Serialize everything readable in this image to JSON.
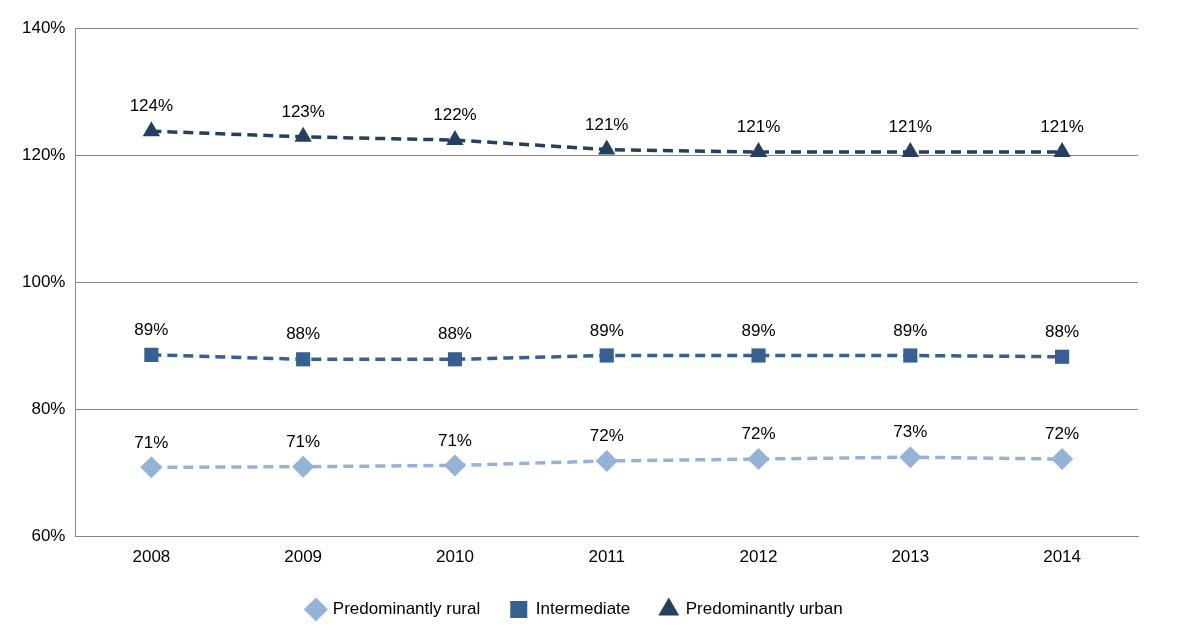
{
  "chart_data": {
    "type": "line",
    "categories": [
      "2008",
      "2009",
      "2010",
      "2011",
      "2012",
      "2013",
      "2014"
    ],
    "series": [
      {
        "name": "Predominantly rural",
        "color": "#95b3d7",
        "marker": "diamond",
        "values": [
          70.9,
          71.0,
          71.2,
          71.9,
          72.2,
          72.5,
          72.2
        ],
        "value_labels": [
          "71%",
          "71%",
          "71%",
          "72%",
          "72%",
          "73%",
          "72%"
        ]
      },
      {
        "name": "Intermediate",
        "color": "#366092",
        "marker": "square",
        "values": [
          88.6,
          87.9,
          87.9,
          88.5,
          88.5,
          88.5,
          88.3
        ],
        "value_labels": [
          "89%",
          "88%",
          "88%",
          "89%",
          "89%",
          "89%",
          "88%"
        ]
      },
      {
        "name": "Predominantly urban",
        "color": "#243f60",
        "marker": "triangle",
        "values": [
          123.8,
          122.9,
          122.4,
          120.9,
          120.5,
          120.5,
          120.5
        ],
        "value_labels": [
          "124%",
          "123%",
          "122%",
          "121%",
          "121%",
          "121%",
          "121%"
        ]
      }
    ],
    "ylim": [
      60,
      140
    ],
    "yticks": [
      {
        "value": 60,
        "label": "60%"
      },
      {
        "value": 80,
        "label": "80%"
      },
      {
        "value": 100,
        "label": "100%"
      },
      {
        "value": 120,
        "label": "120%"
      },
      {
        "value": 140,
        "label": "140%"
      }
    ],
    "grid": "y",
    "legend": "bottom",
    "line_style": "dashed"
  }
}
